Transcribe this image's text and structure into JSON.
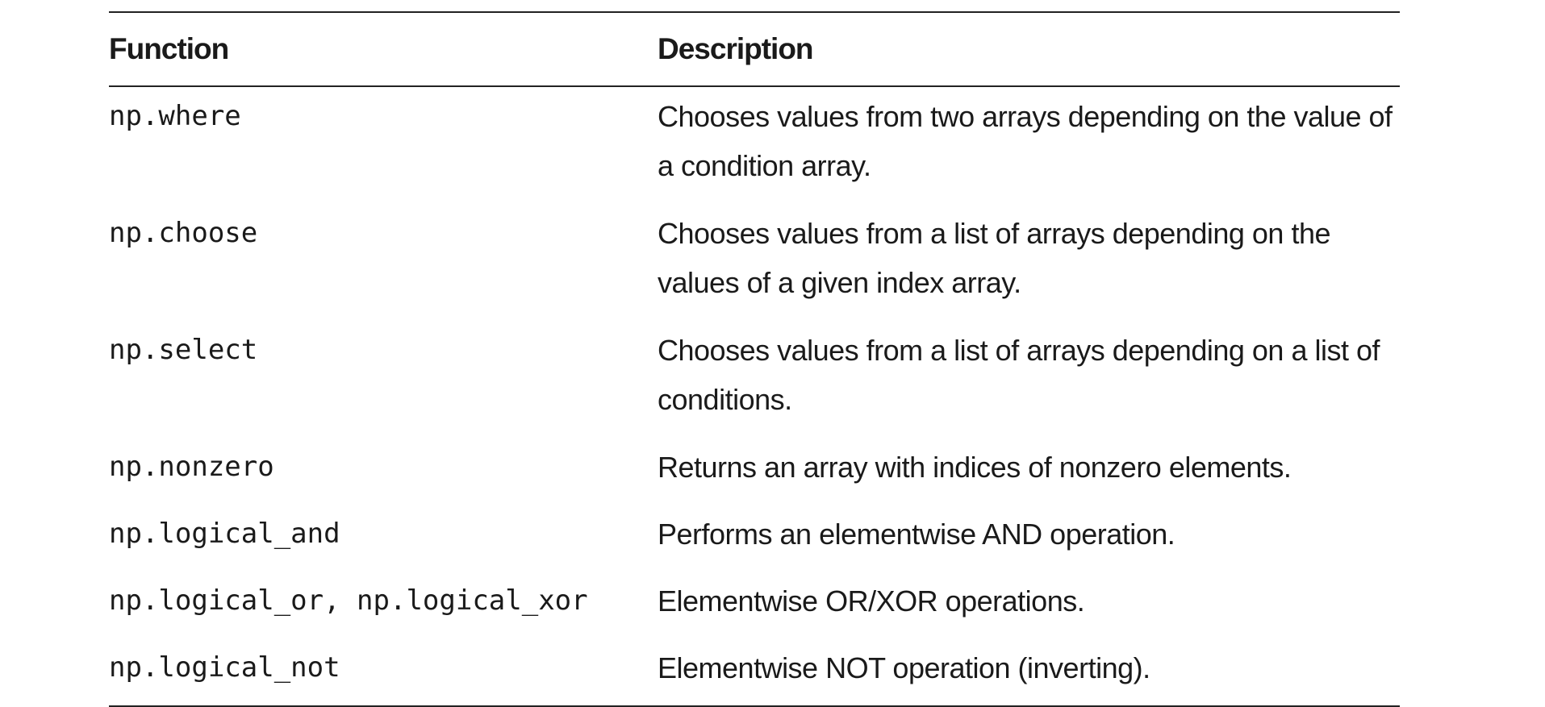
{
  "table": {
    "headers": {
      "function": "Function",
      "description": "Description"
    },
    "rows": [
      {
        "function": "np.where",
        "description": "Chooses values from two arrays depending on the value of a condition array."
      },
      {
        "function": "np.choose",
        "description": "Chooses values from a list of arrays depending on the values of a given index array."
      },
      {
        "function": "np.select",
        "description": "Chooses values from a list of arrays depending on a list of conditions."
      },
      {
        "function": "np.nonzero",
        "description": "Returns an array with indices of nonzero elements."
      },
      {
        "function": "np.logical_and",
        "description": "Performs an elementwise AND operation."
      },
      {
        "function": "np.logical_or, np.logical_xor",
        "description": "Elementwise OR/XOR operations."
      },
      {
        "function": "np.logical_not",
        "description": "Elementwise NOT operation (inverting)."
      }
    ]
  }
}
